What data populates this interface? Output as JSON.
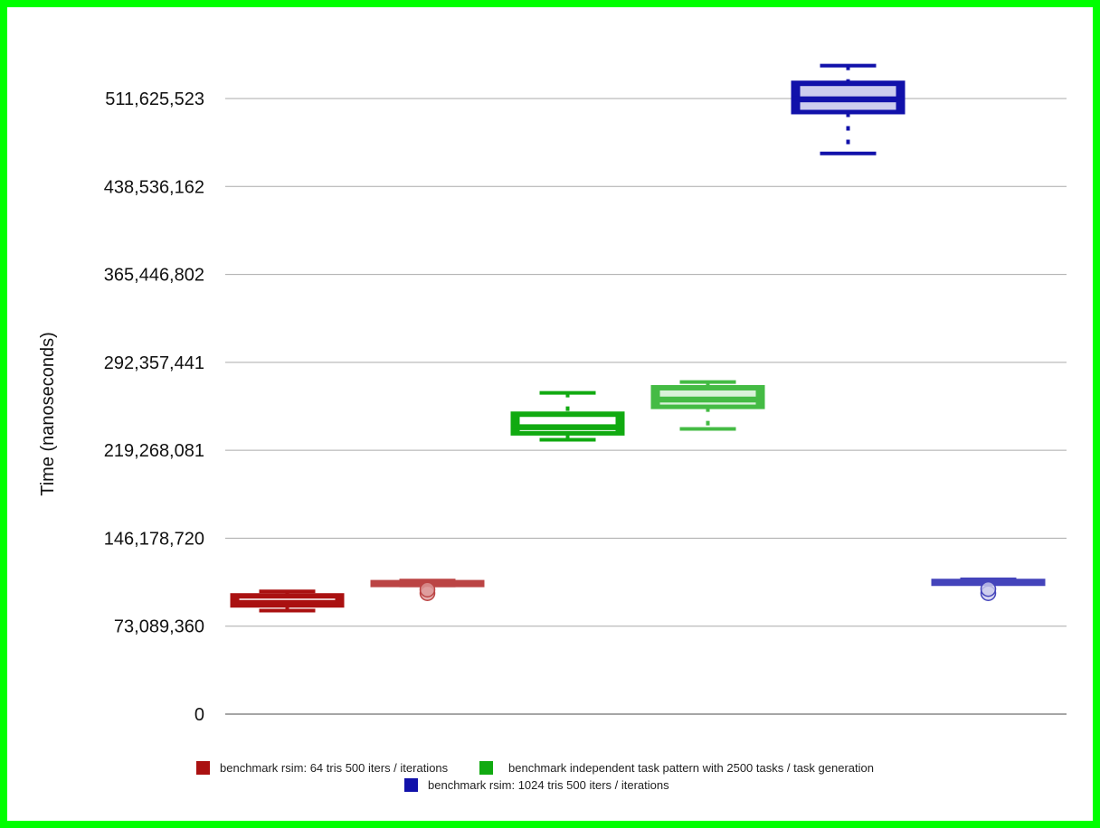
{
  "chart_data": {
    "type": "box",
    "ylabel": "Time (nanoseconds)",
    "xlabel": "",
    "ylim": [
      0,
      584714884
    ],
    "yticks": [
      0,
      73089360,
      146178720,
      219268081,
      292357441,
      365446802,
      438536162,
      511625523
    ],
    "ytick_labels": [
      "0",
      "73,089,360",
      "146,178,720",
      "219,268,081",
      "292,357,441",
      "365,446,802",
      "438,536,162",
      "511,625,523"
    ],
    "grid": true,
    "legend_position": "bottom",
    "legend": [
      {
        "label": "benchmark rsim:   64 tris 500 iters / iterations",
        "color": "#aa1111"
      },
      {
        "label": "benchmark independent task pattern with 2500 tasks / task generation",
        "color": "#11aa11"
      },
      {
        "label": "benchmark rsim: 1024 tris 500 iters / iterations",
        "color": "#1111aa"
      }
    ],
    "boxes": [
      {
        "group": 0,
        "slot": 0,
        "color": "#aa1111",
        "fill": "#ffffff",
        "min": 86000000,
        "q1": 90000000,
        "median": 93000000,
        "q3": 99000000,
        "max": 102000000,
        "outliers": []
      },
      {
        "group": 0,
        "slot": 1,
        "color": "#bb4444",
        "fill": "#dd9999",
        "min": 107000000,
        "q1": 108000000,
        "median": 109000000,
        "q3": 110000000,
        "max": 111000000,
        "outliers": [
          100500000,
          103500000
        ]
      },
      {
        "group": 1,
        "slot": 0,
        "color": "#11aa11",
        "fill": "#ffffff",
        "min": 228000000,
        "q1": 233000000,
        "median": 239000000,
        "q3": 250000000,
        "max": 267000000,
        "outliers": []
      },
      {
        "group": 1,
        "slot": 1,
        "color": "#44bb44",
        "fill": "#d9f2d9",
        "min": 237000000,
        "q1": 255000000,
        "median": 262000000,
        "q3": 272000000,
        "max": 276000000,
        "outliers": []
      },
      {
        "group": 2,
        "slot": 0,
        "color": "#1111aa",
        "fill": "#ccccee",
        "min": 466000000,
        "q1": 500000000,
        "median": 511500000,
        "q3": 525000000,
        "max": 539000000,
        "outliers": []
      },
      {
        "group": 2,
        "slot": 1,
        "color": "#4444bb",
        "fill": "#ccccee",
        "min": 108500000,
        "q1": 109000000,
        "median": 110000000,
        "q3": 111000000,
        "max": 112000000,
        "outliers": [
          100500000,
          104000000
        ]
      }
    ]
  }
}
